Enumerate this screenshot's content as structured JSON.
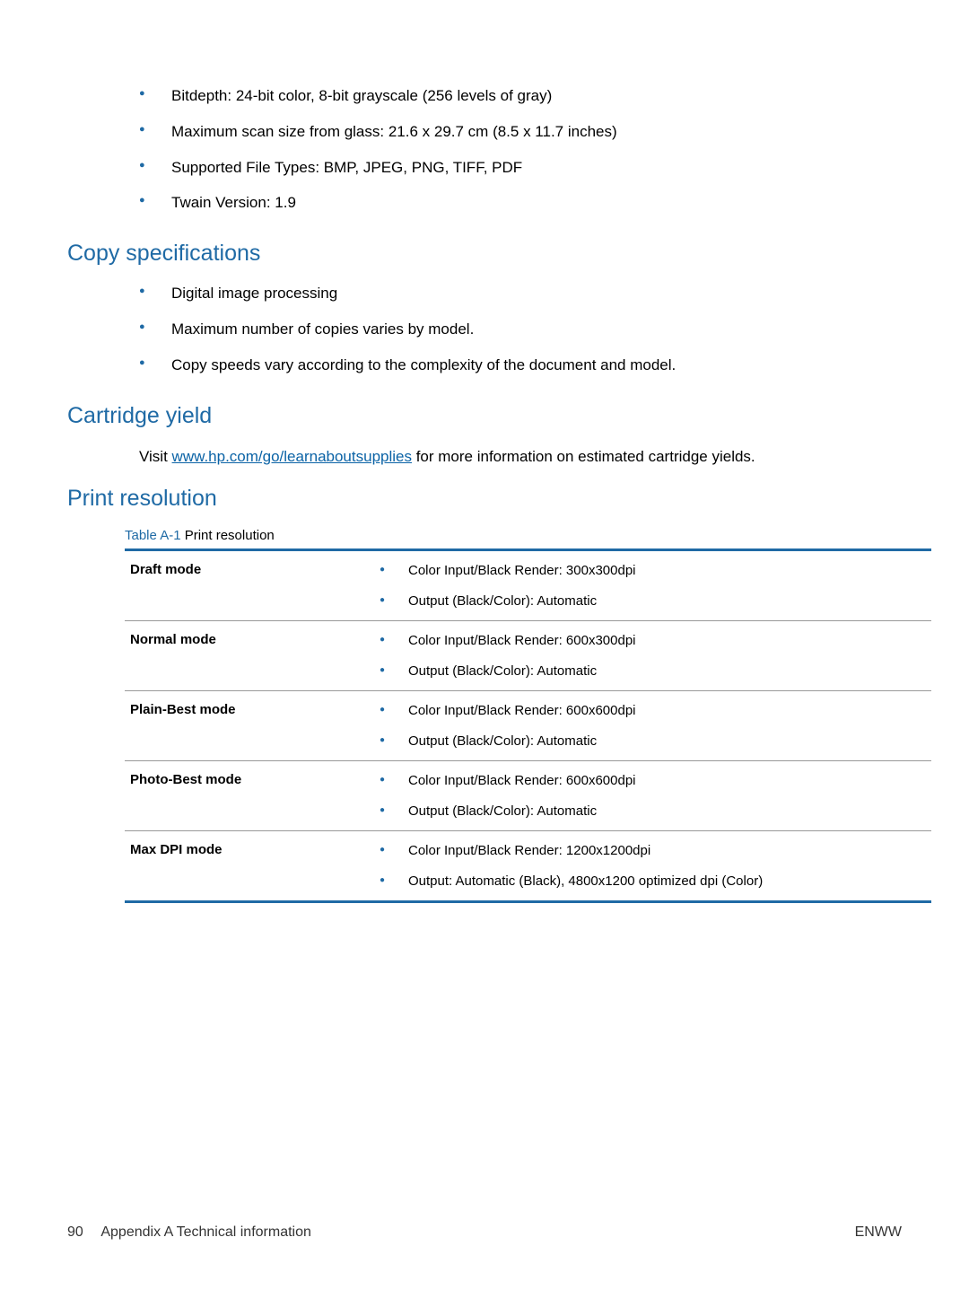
{
  "scan_specs": {
    "items": [
      "Bitdepth: 24-bit color, 8-bit grayscale (256 levels of gray)",
      "Maximum scan size from glass: 21.6 x 29.7 cm (8.5 x 11.7 inches)",
      "Supported File Types: BMP, JPEG, PNG, TIFF, PDF",
      "Twain Version: 1.9"
    ]
  },
  "copy_specs": {
    "heading": "Copy specifications",
    "items": [
      "Digital image processing",
      "Maximum number of copies varies by model.",
      "Copy speeds vary according to the complexity of the document and model."
    ]
  },
  "cartridge_yield": {
    "heading": "Cartridge yield",
    "prefix": "Visit ",
    "link_text": "www.hp.com/go/learnaboutsupplies",
    "link_href": "http://www.hp.com/go/learnaboutsupplies",
    "suffix": " for more information on estimated cartridge yields."
  },
  "print_resolution": {
    "heading": "Print resolution",
    "table_label": "Table A-1",
    "table_title": "  Print resolution",
    "rows": [
      {
        "mode": "Draft mode",
        "values": [
          "Color Input/Black Render: 300x300dpi",
          "Output (Black/Color): Automatic"
        ]
      },
      {
        "mode": "Normal mode",
        "values": [
          "Color Input/Black Render: 600x300dpi",
          "Output (Black/Color): Automatic"
        ]
      },
      {
        "mode": "Plain-Best mode",
        "values": [
          "Color Input/Black Render: 600x600dpi",
          "Output (Black/Color): Automatic"
        ]
      },
      {
        "mode": "Photo-Best mode",
        "values": [
          "Color Input/Black Render: 600x600dpi",
          "Output (Black/Color): Automatic"
        ]
      },
      {
        "mode": "Max DPI mode",
        "values": [
          "Color Input/Black Render: 1200x1200dpi",
          "Output: Automatic (Black), 4800x1200 optimized dpi (Color)"
        ]
      }
    ],
    "colors": {
      "heading_color": "#1f6aa5",
      "border_color": "#1f6aa5",
      "row_divider_color": "#999999",
      "bullet_color": "#1f6aa5",
      "background_color": "#ffffff",
      "text_color": "#000000"
    },
    "typography": {
      "heading_fontsize": 25,
      "body_fontsize": 17,
      "table_fontsize": 15,
      "font_family": "Arial"
    }
  },
  "footer": {
    "page_number": "90",
    "appendix": "Appendix A   Technical information",
    "right": "ENWW"
  }
}
